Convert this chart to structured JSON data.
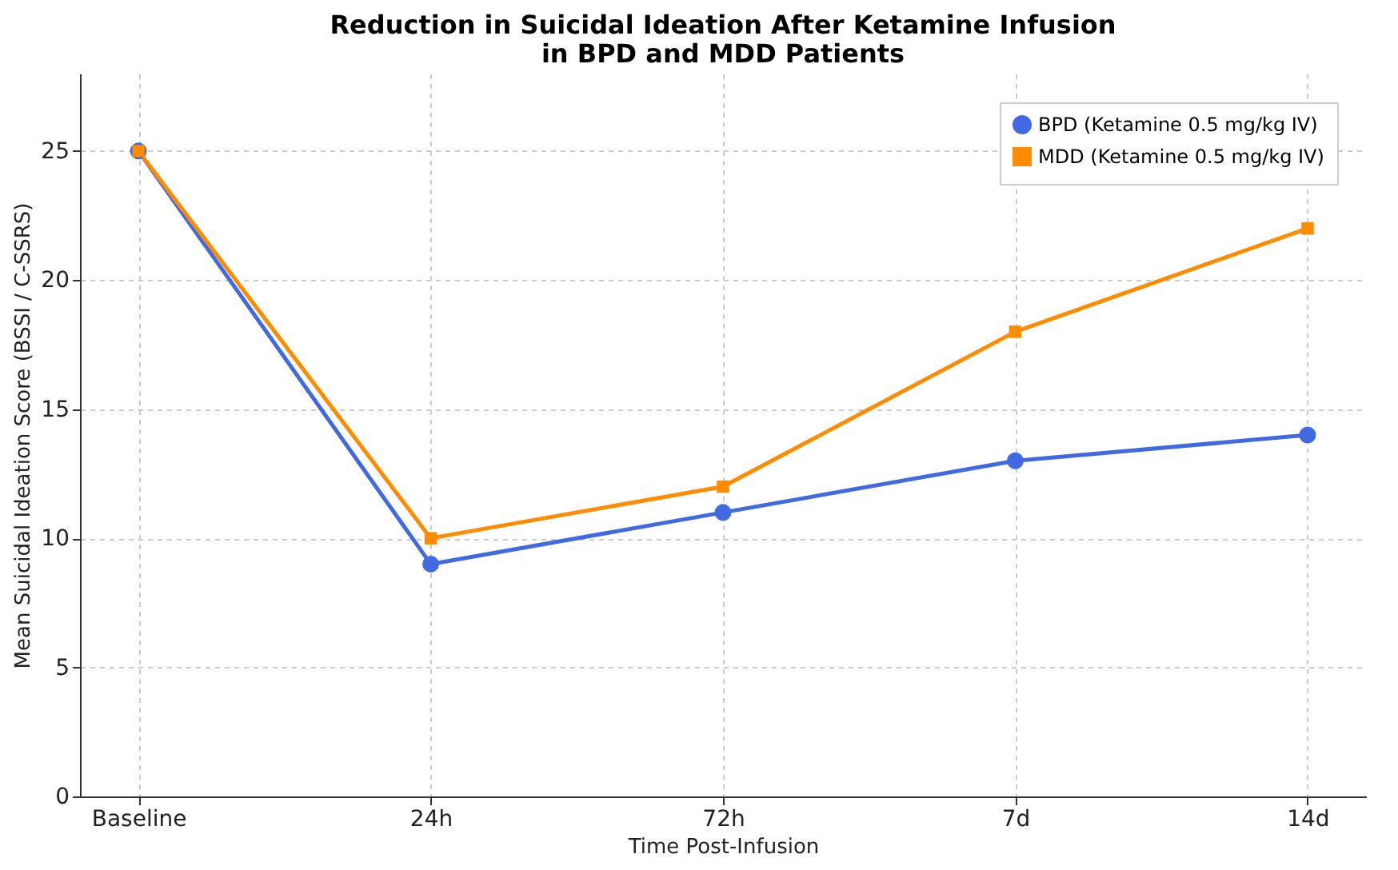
{
  "chart_data": {
    "type": "line",
    "title": "Reduction in Suicidal Ideation After Ketamine Infusion\nin BPD and MDD Patients",
    "xlabel": "Time Post-Infusion",
    "ylabel": "Mean Suicidal Ideation Score (BSSI / C-SSRS)",
    "categories": [
      "Baseline",
      "24h",
      "72h",
      "7d",
      "14d"
    ],
    "series": [
      {
        "name": "BPD (Ketamine 0.5 mg/kg IV)",
        "color": "#4169e1",
        "marker": "circle",
        "values": [
          25,
          9,
          11,
          13,
          14
        ]
      },
      {
        "name": "MDD (Ketamine 0.5 mg/kg IV)",
        "color": "#ff8c00",
        "marker": "square",
        "values": [
          25,
          10,
          12,
          18,
          22
        ]
      }
    ],
    "ylim": [
      0,
      28
    ],
    "yticks": [
      0,
      5,
      10,
      15,
      20,
      25
    ],
    "grid": true,
    "legend": "top right",
    "line_style": "solid"
  }
}
